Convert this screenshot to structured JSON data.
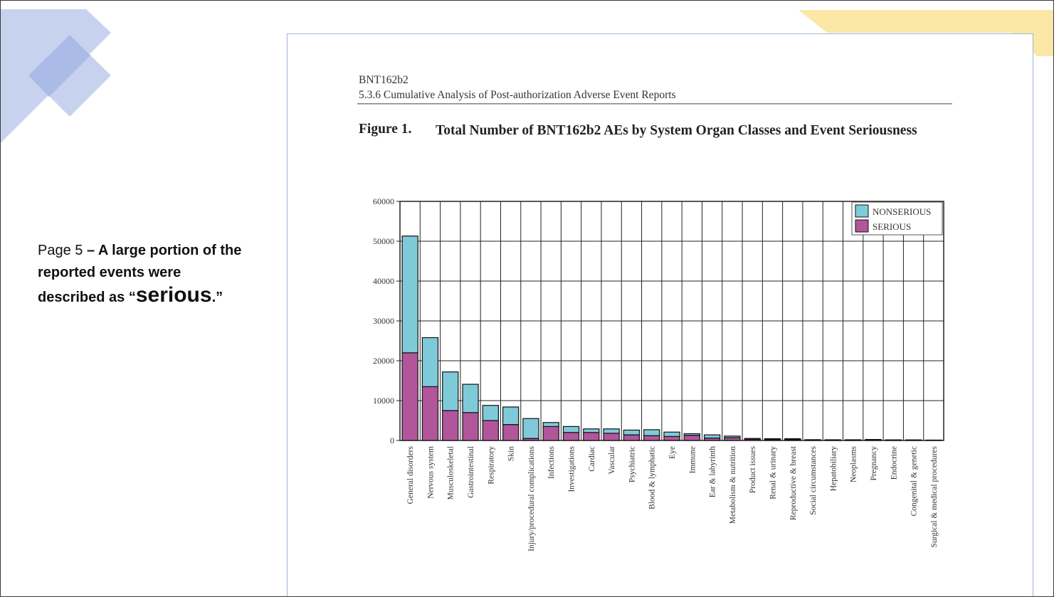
{
  "slide": {
    "note_prefix": "Page 5",
    "note_bold": " – A large portion of the reported events were described as “",
    "note_emph": "serious",
    "note_suffix": ".”"
  },
  "document": {
    "header_line1": "BNT162b2",
    "header_line2": "5.3.6 Cumulative Analysis of Post-authorization Adverse Event Reports",
    "figure_label": "Figure 1.",
    "figure_title": "Total Number of BNT162b2 AEs by System Organ Classes and Event Seriousness"
  },
  "colors": {
    "nonserious": "#7fcad8",
    "serious": "#b1569b",
    "deco_blue": "#c7d3ee",
    "deco_blue_dark": "#a9bbe6",
    "deco_yellow": "#fbe7a6"
  },
  "chart_data": {
    "type": "bar",
    "stacked": true,
    "title": "Total Number of BNT162b2 AEs by System Organ Classes and Event Seriousness",
    "ylim": [
      0,
      60000
    ],
    "yticks": [
      0,
      10000,
      20000,
      30000,
      40000,
      50000,
      60000
    ],
    "grid": true,
    "legend_position": "top-right",
    "categories": [
      "General disorders",
      "Nervous system",
      "Musculoskeletal",
      "Gastrointestinal",
      "Respiratory",
      "Skin",
      "Injury/procedural complications",
      "Infections",
      "Investigations",
      "Cardiac",
      "Vascular",
      "Psychiatric",
      "Blood & lymphatic",
      "Eye",
      "Immune",
      "Ear & labyrinth",
      "Metabolism & nutrition",
      "Product issues",
      "Renal & urinary",
      "Reproductive & breast",
      "Social circumstances",
      "Hepatobiliary",
      "Neoplasms",
      "Pregnancy",
      "Endocrine",
      "Congenital & genetic",
      "Surgical & medical procedures"
    ],
    "series": [
      {
        "name": "SERIOUS",
        "color": "#b1569b",
        "values": [
          22000,
          13500,
          7500,
          7000,
          5000,
          4000,
          500,
          3500,
          2000,
          2000,
          1800,
          1400,
          1200,
          1000,
          1300,
          600,
          700,
          300,
          250,
          250,
          100,
          120,
          150,
          200,
          80,
          80,
          60
        ]
      },
      {
        "name": "NONSERIOUS",
        "color": "#7fcad8",
        "values": [
          29300,
          12300,
          9700,
          7100,
          3800,
          4400,
          5000,
          1000,
          1500,
          900,
          1100,
          1200,
          1500,
          1100,
          400,
          800,
          400,
          200,
          200,
          200,
          100,
          60,
          30,
          50,
          80,
          70,
          40
        ]
      }
    ]
  }
}
